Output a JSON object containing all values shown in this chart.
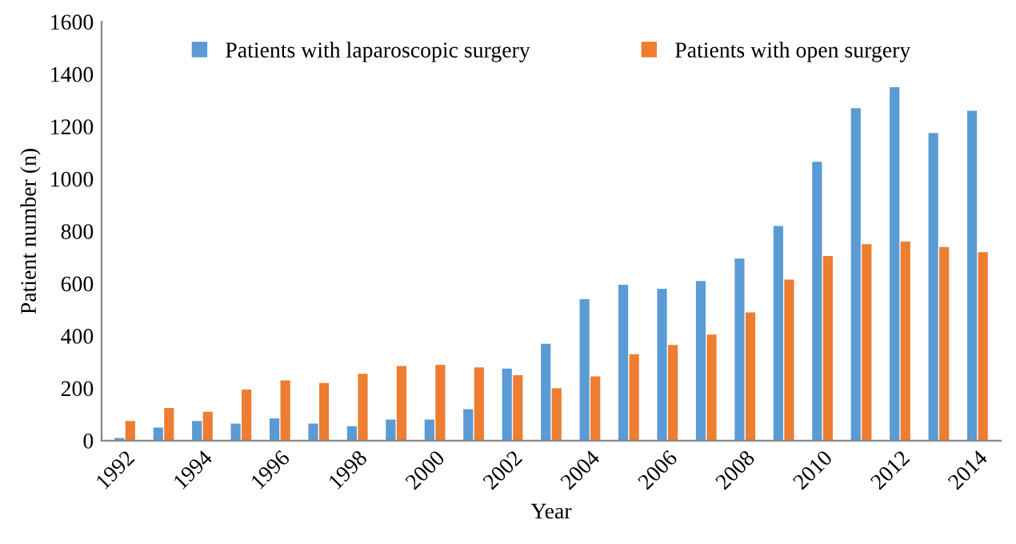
{
  "chart_data": {
    "type": "bar",
    "xlabel": "Year",
    "ylabel": "Patient number (n)",
    "categories": [
      "1992",
      null,
      "1994",
      null,
      "1996",
      null,
      "1998",
      null,
      "2000",
      null,
      "2002",
      null,
      "2004",
      null,
      "2006",
      null,
      "2008",
      null,
      "2010",
      null,
      "2012",
      null,
      "2014"
    ],
    "series": [
      {
        "name": "Patients with laparoscopic surgery",
        "color": "#5b9bd5",
        "values": [
          10,
          50,
          75,
          65,
          85,
          65,
          55,
          80,
          80,
          120,
          275,
          370,
          540,
          595,
          580,
          610,
          695,
          820,
          1065,
          1270,
          1350,
          1175,
          1260
        ]
      },
      {
        "name": "Patients with open surgery",
        "color": "#ed7d31",
        "values": [
          75,
          125,
          110,
          195,
          230,
          220,
          255,
          285,
          290,
          280,
          250,
          200,
          245,
          330,
          365,
          405,
          490,
          615,
          705,
          750,
          760,
          740,
          720
        ]
      }
    ],
    "ylim": [
      0,
      1600
    ],
    "yticks": [
      0,
      200,
      400,
      600,
      800,
      1000,
      1200,
      1400,
      1600
    ],
    "grid": false,
    "legend": "top"
  }
}
